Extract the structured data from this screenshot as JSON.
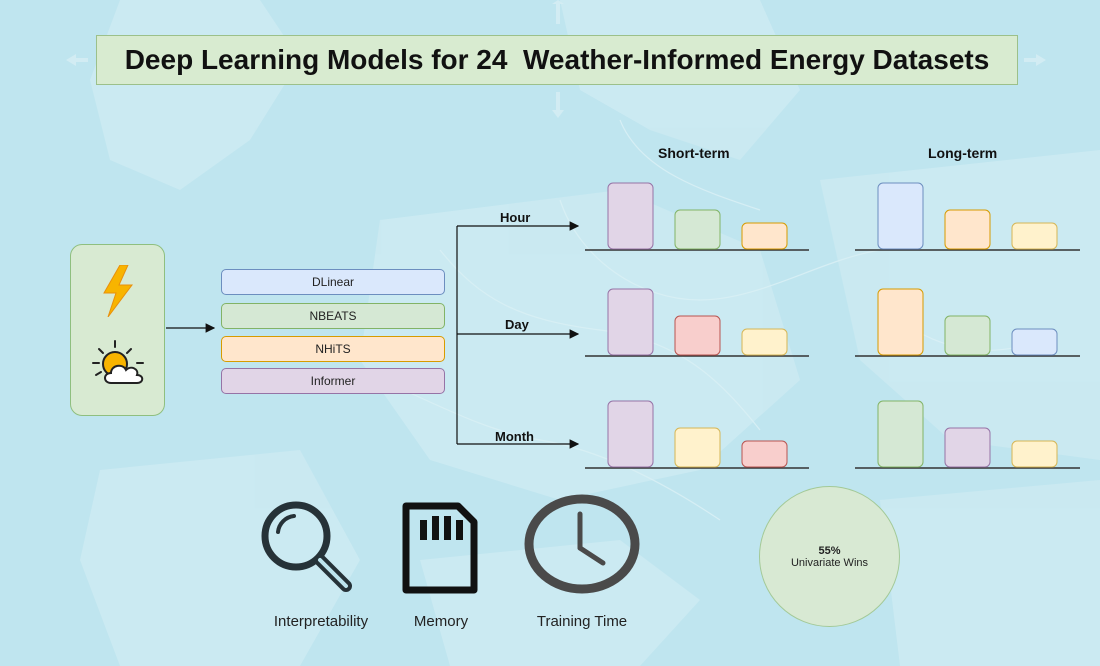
{
  "title": "Deep Learning Models for 24  Weather-Informed Energy Datasets",
  "models": [
    "DLinear",
    "NBEATS",
    "NHiTS",
    "Informer"
  ],
  "model_colors": {
    "DLinear": {
      "fill": "#dae8fc",
      "stroke": "#6c8ebf"
    },
    "NBEATS": {
      "fill": "#d5e8d4",
      "stroke": "#82b366"
    },
    "NHiTS": {
      "fill": "#ffe6cc",
      "stroke": "#d79b00"
    },
    "Informer": {
      "fill": "#e1d5e7",
      "stroke": "#9673a6"
    },
    "red": {
      "fill": "#f8cecc",
      "stroke": "#b85450"
    },
    "yellow": {
      "fill": "#fff2cc",
      "stroke": "#d6b656"
    }
  },
  "horizons": [
    "Hour",
    "Day",
    "Month"
  ],
  "columns": [
    "Short-term",
    "Long-term"
  ],
  "rankings": {
    "Hour": {
      "short": [
        "Informer",
        "NBEATS",
        "NHiTS"
      ],
      "long": [
        "DLinear",
        "NHiTS",
        "yellow"
      ]
    },
    "Day": {
      "short": [
        "Informer",
        "red",
        "yellow"
      ],
      "long": [
        "NHiTS",
        "NBEATS",
        "DLinear"
      ]
    },
    "Month": {
      "short": [
        "Informer",
        "yellow",
        "red"
      ],
      "long": [
        "NBEATS",
        "Informer",
        "yellow"
      ]
    }
  },
  "input_icons": [
    "lightning-icon",
    "weather-sun-cloud-icon"
  ],
  "metrics": [
    {
      "label": "Interpretability",
      "icon": "magnifier-icon"
    },
    {
      "label": "Memory",
      "icon": "sd-card-icon"
    },
    {
      "label": "Training Time",
      "icon": "clock-icon"
    }
  ],
  "result": {
    "percent": "55%",
    "label": "Univariate Wins"
  }
}
